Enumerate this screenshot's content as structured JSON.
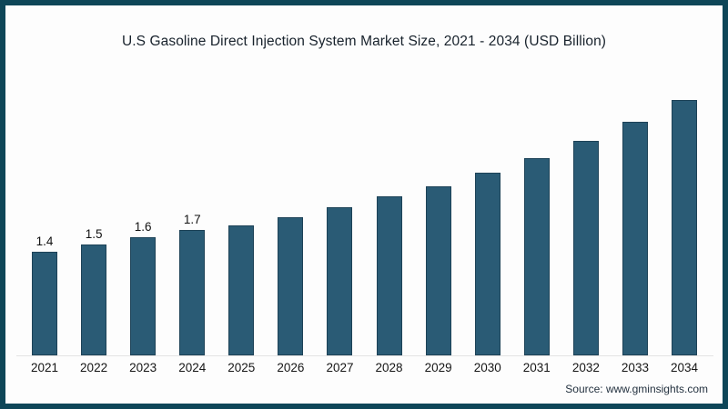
{
  "frame": {
    "border_color": "#0e4658",
    "background": "#fdfdfd"
  },
  "chart_data": {
    "type": "bar",
    "title": "U.S Gasoline Direct Injection System Market Size, 2021 - 2034 (USD Billion)",
    "categories": [
      "2021",
      "2022",
      "2023",
      "2024",
      "2025",
      "2026",
      "2027",
      "2028",
      "2029",
      "2030",
      "2031",
      "2032",
      "2033",
      "2034"
    ],
    "values": [
      1.4,
      1.5,
      1.6,
      1.7,
      1.76,
      1.87,
      2.0,
      2.15,
      2.29,
      2.47,
      2.67,
      2.9,
      3.16,
      3.45
    ],
    "data_labels": [
      "1.4",
      "1.5",
      "1.6",
      "1.7",
      "",
      "",
      "",
      "",
      "",
      "",
      "",
      "",
      "",
      ""
    ],
    "bar_color": "#2a5b75",
    "xlabel": "",
    "ylabel": "",
    "ylim": [
      0,
      4.0
    ],
    "grid": false,
    "legend": false,
    "source": "Source: www.gminsights.com"
  }
}
